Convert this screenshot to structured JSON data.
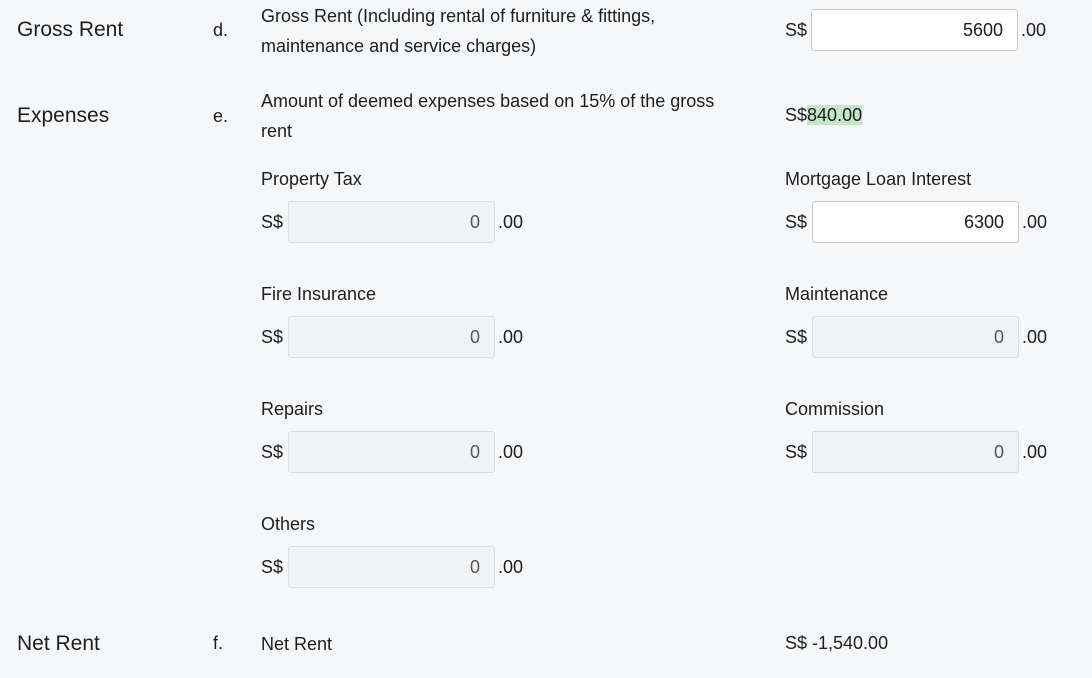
{
  "gross_rent": {
    "section": "Gross Rent",
    "letter": "d.",
    "description": "Gross Rent (Including rental of furniture & fittings, maintenance and service charges)",
    "currency": "S$",
    "value": "5600",
    "cents": ".00"
  },
  "expenses": {
    "section": "Expenses",
    "letter": "e.",
    "description": "Amount of deemed expenses based on 15% of the gross rent",
    "currency": "S$",
    "deemed_amount": "840.00",
    "highlight_color": "#c3e6c8",
    "fields": [
      {
        "label": "Property Tax",
        "currency": "S$",
        "value": "0",
        "cents": ".00",
        "enabled": false
      },
      {
        "label": "Mortgage Loan Interest",
        "currency": "S$",
        "value": "6300",
        "cents": ".00",
        "enabled": true
      },
      {
        "label": "Fire Insurance",
        "currency": "S$",
        "value": "0",
        "cents": ".00",
        "enabled": false
      },
      {
        "label": "Maintenance",
        "currency": "S$",
        "value": "0",
        "cents": ".00",
        "enabled": false
      },
      {
        "label": "Repairs",
        "currency": "S$",
        "value": "0",
        "cents": ".00",
        "enabled": false
      },
      {
        "label": "Commission",
        "currency": "S$",
        "value": "0",
        "cents": ".00",
        "enabled": false
      },
      {
        "label": "Others",
        "currency": "S$",
        "value": "0",
        "cents": ".00",
        "enabled": false
      }
    ]
  },
  "net_rent": {
    "section": "Net Rent",
    "letter": "f.",
    "description": "Net Rent",
    "value": "S$ -1,540.00"
  }
}
